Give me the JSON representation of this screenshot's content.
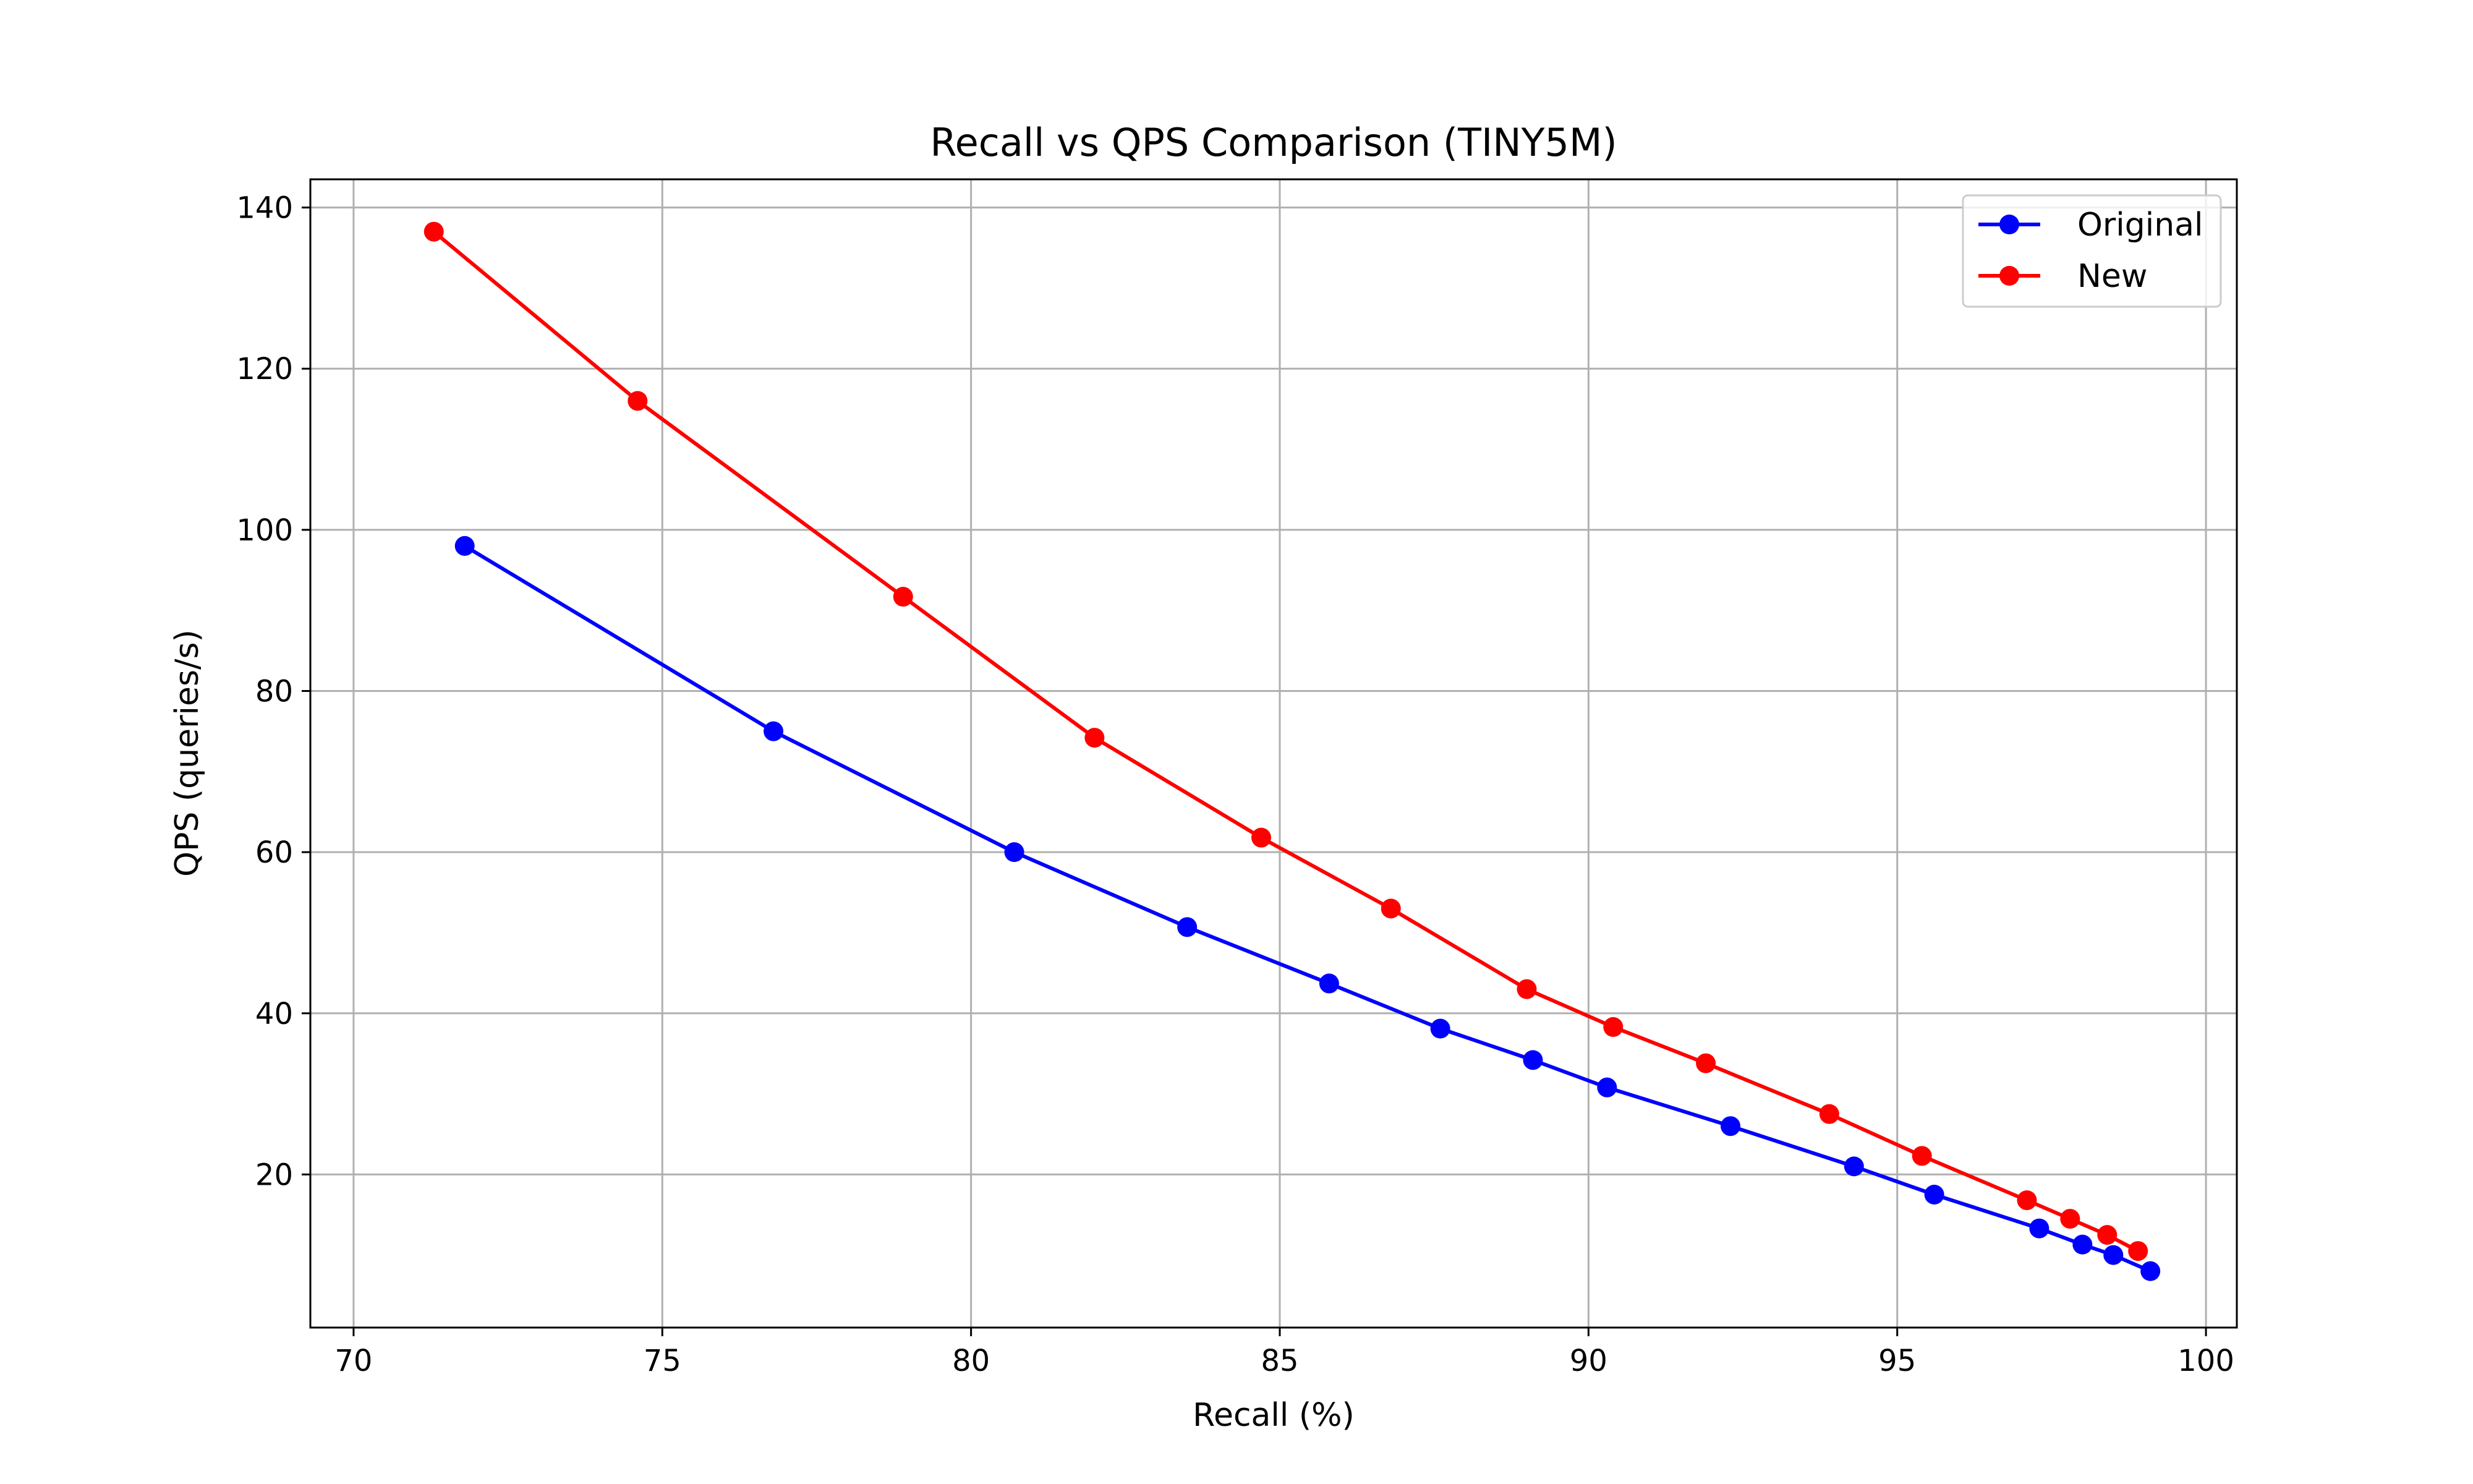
{
  "chart_data": {
    "type": "line",
    "title": "Recall vs QPS Comparison (TINY5M)",
    "xlabel": "Recall (%)",
    "ylabel": "QPS (queries/s)",
    "xlim": [
      69.3,
      100.5
    ],
    "ylim": [
      1,
      143.5
    ],
    "xticks": [
      70,
      75,
      80,
      85,
      90,
      95,
      100
    ],
    "yticks": [
      20,
      40,
      60,
      80,
      100,
      120,
      140
    ],
    "grid": true,
    "legend_position": "top-right",
    "series": [
      {
        "name": "Original",
        "color": "#0000ff",
        "x": [
          71.8,
          76.8,
          80.7,
          83.5,
          85.8,
          87.6,
          89.1,
          90.3,
          92.3,
          94.3,
          95.6,
          97.3,
          98.0,
          98.5,
          99.1
        ],
        "y": [
          98.0,
          75.0,
          60.0,
          50.7,
          43.7,
          38.1,
          34.2,
          30.8,
          26.0,
          21.0,
          17.5,
          13.3,
          11.3,
          10.0,
          8.0
        ]
      },
      {
        "name": "New",
        "color": "#ff0000",
        "x": [
          71.3,
          74.6,
          78.9,
          82.0,
          84.7,
          86.8,
          89.0,
          90.4,
          91.9,
          93.9,
          95.4,
          97.1,
          97.8,
          98.4,
          98.9
        ],
        "y": [
          137.0,
          116.0,
          91.7,
          74.2,
          61.8,
          53.0,
          43.0,
          38.3,
          33.8,
          27.5,
          22.3,
          16.8,
          14.5,
          12.5,
          10.5
        ]
      }
    ]
  }
}
